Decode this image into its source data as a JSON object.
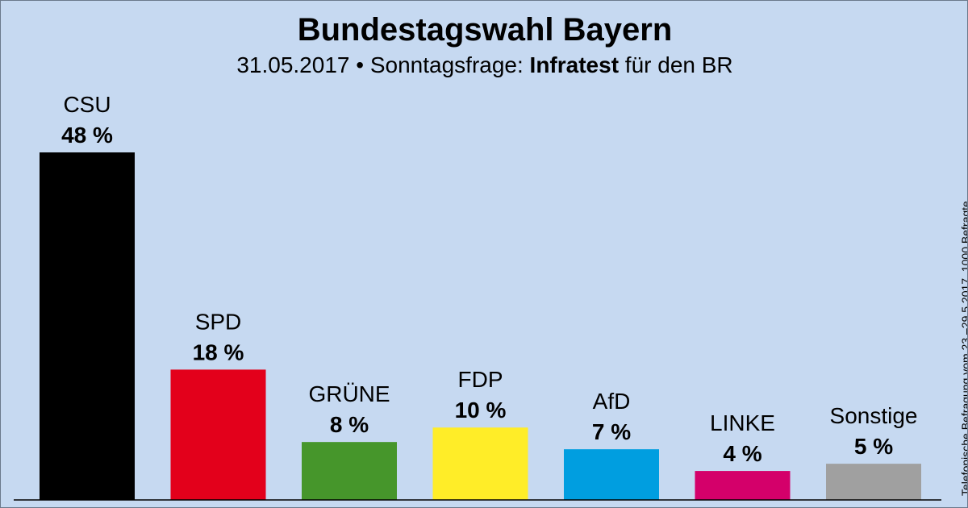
{
  "header": {
    "title": "Bundestagswahl Bayern",
    "date": "31.05.2017",
    "separator": "•",
    "question": "Sonntagsfrage:",
    "institute": "Infratest",
    "client": "für den BR"
  },
  "footnote": "Telefonische Befragung vom 23.–29.5.2017, 1000 Befragte",
  "chart_data": {
    "type": "bar",
    "title": "Bundestagswahl Bayern",
    "subtitle": "31.05.2017 • Sonntagsfrage: Infratest für den BR",
    "categories": [
      "CSU",
      "SPD",
      "GRÜNE",
      "FDP",
      "AfD",
      "LINKE",
      "Sonstige"
    ],
    "values": [
      48,
      18,
      8,
      10,
      7,
      4,
      5
    ],
    "value_labels": [
      "48 %",
      "18 %",
      "8 %",
      "10 %",
      "7 %",
      "4 %",
      "5 %"
    ],
    "colors": [
      "#000000",
      "#e3001b",
      "#46962b",
      "#ffed28",
      "#009ee0",
      "#d4006a",
      "#a0a0a0"
    ],
    "unit": "%",
    "xlabel": "",
    "ylabel": "",
    "ylim": [
      0,
      48
    ],
    "grid": false,
    "legend": "none"
  }
}
